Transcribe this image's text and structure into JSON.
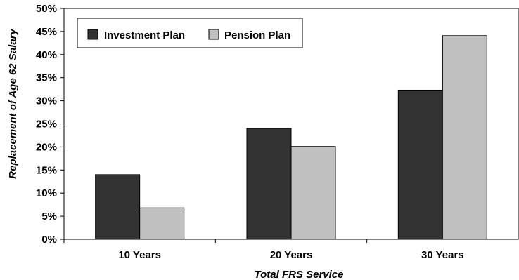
{
  "chart_data": {
    "type": "bar",
    "categories": [
      "10 Years",
      "20 Years",
      "30 Years"
    ],
    "series": [
      {
        "name": "Investment Plan",
        "values": [
          14,
          24,
          32.3
        ],
        "color": "#333333"
      },
      {
        "name": "Pension Plan",
        "values": [
          6.8,
          20.1,
          44.1
        ],
        "color": "#c0c0c0"
      }
    ],
    "xlabel": "Total FRS Service",
    "ylabel": "Replacement of Age 62 Salary",
    "ylim": [
      0,
      50
    ],
    "yticks": [
      0,
      5,
      10,
      15,
      20,
      25,
      30,
      35,
      40,
      45,
      50
    ],
    "ytick_suffix": "%",
    "grid": false,
    "legend_position": "top-left"
  }
}
